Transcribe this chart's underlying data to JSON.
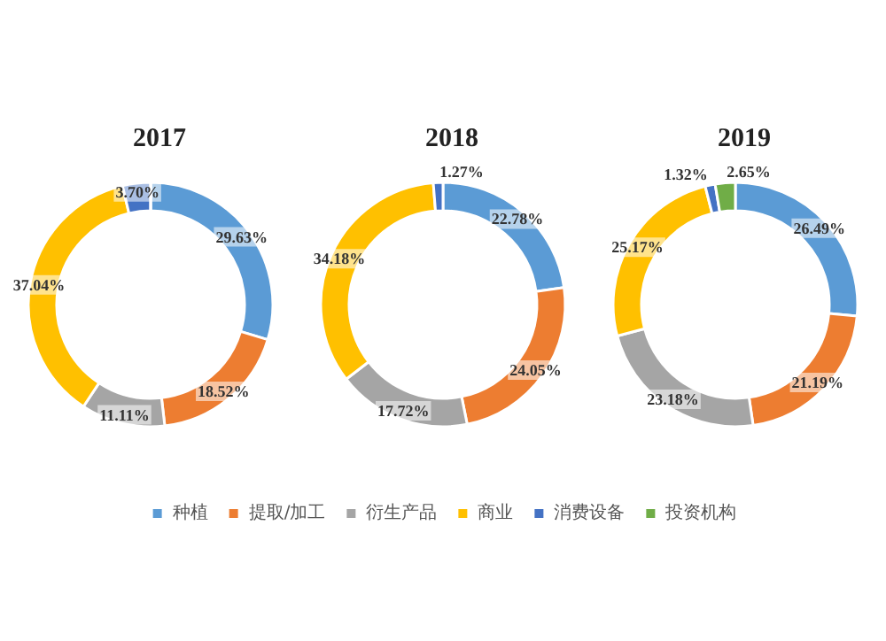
{
  "chart_data": [
    {
      "type": "donut",
      "title": "2017",
      "categories": [
        "种植",
        "提取/加工",
        "衍生产品",
        "商业",
        "消费设备",
        "投资机构"
      ],
      "values": [
        29.63,
        18.52,
        11.11,
        37.04,
        3.7,
        0
      ],
      "value_labels": [
        "29.63%",
        "18.52%",
        "11.11%",
        "37.04%",
        "3.70%",
        null
      ],
      "colors": [
        "#5b9bd5",
        "#ed7d31",
        "#a5a5a5",
        "#ffc000",
        "#4472c4",
        "#70ad47"
      ],
      "legend": "bottom"
    },
    {
      "type": "donut",
      "title": "2018",
      "categories": [
        null,
        null,
        null,
        null,
        null
      ],
      "values": [
        22.78,
        24.05,
        17.72,
        34.18,
        1.27
      ],
      "value_labels": [
        "22.78%",
        "24.05%",
        "17.72%",
        "34.18%",
        "1.27%"
      ],
      "colors": [
        "#5b9bd5",
        "#ed7d31",
        "#a5a5a5",
        "#ffc000",
        "#4472c4"
      ]
    },
    {
      "type": "donut",
      "title": "2019",
      "categories": [
        null,
        null,
        null,
        null,
        null,
        null
      ],
      "values": [
        26.49,
        21.19,
        23.18,
        25.17,
        1.32,
        2.65
      ],
      "value_labels": [
        "26.49%",
        "21.19%",
        "23.18%",
        "25.17%",
        "1.32%",
        "2.65%"
      ],
      "colors": [
        "#5b9bd5",
        "#ed7d31",
        "#a5a5a5",
        "#ffc000",
        "#4472c4",
        "#70ad47"
      ]
    }
  ]
}
